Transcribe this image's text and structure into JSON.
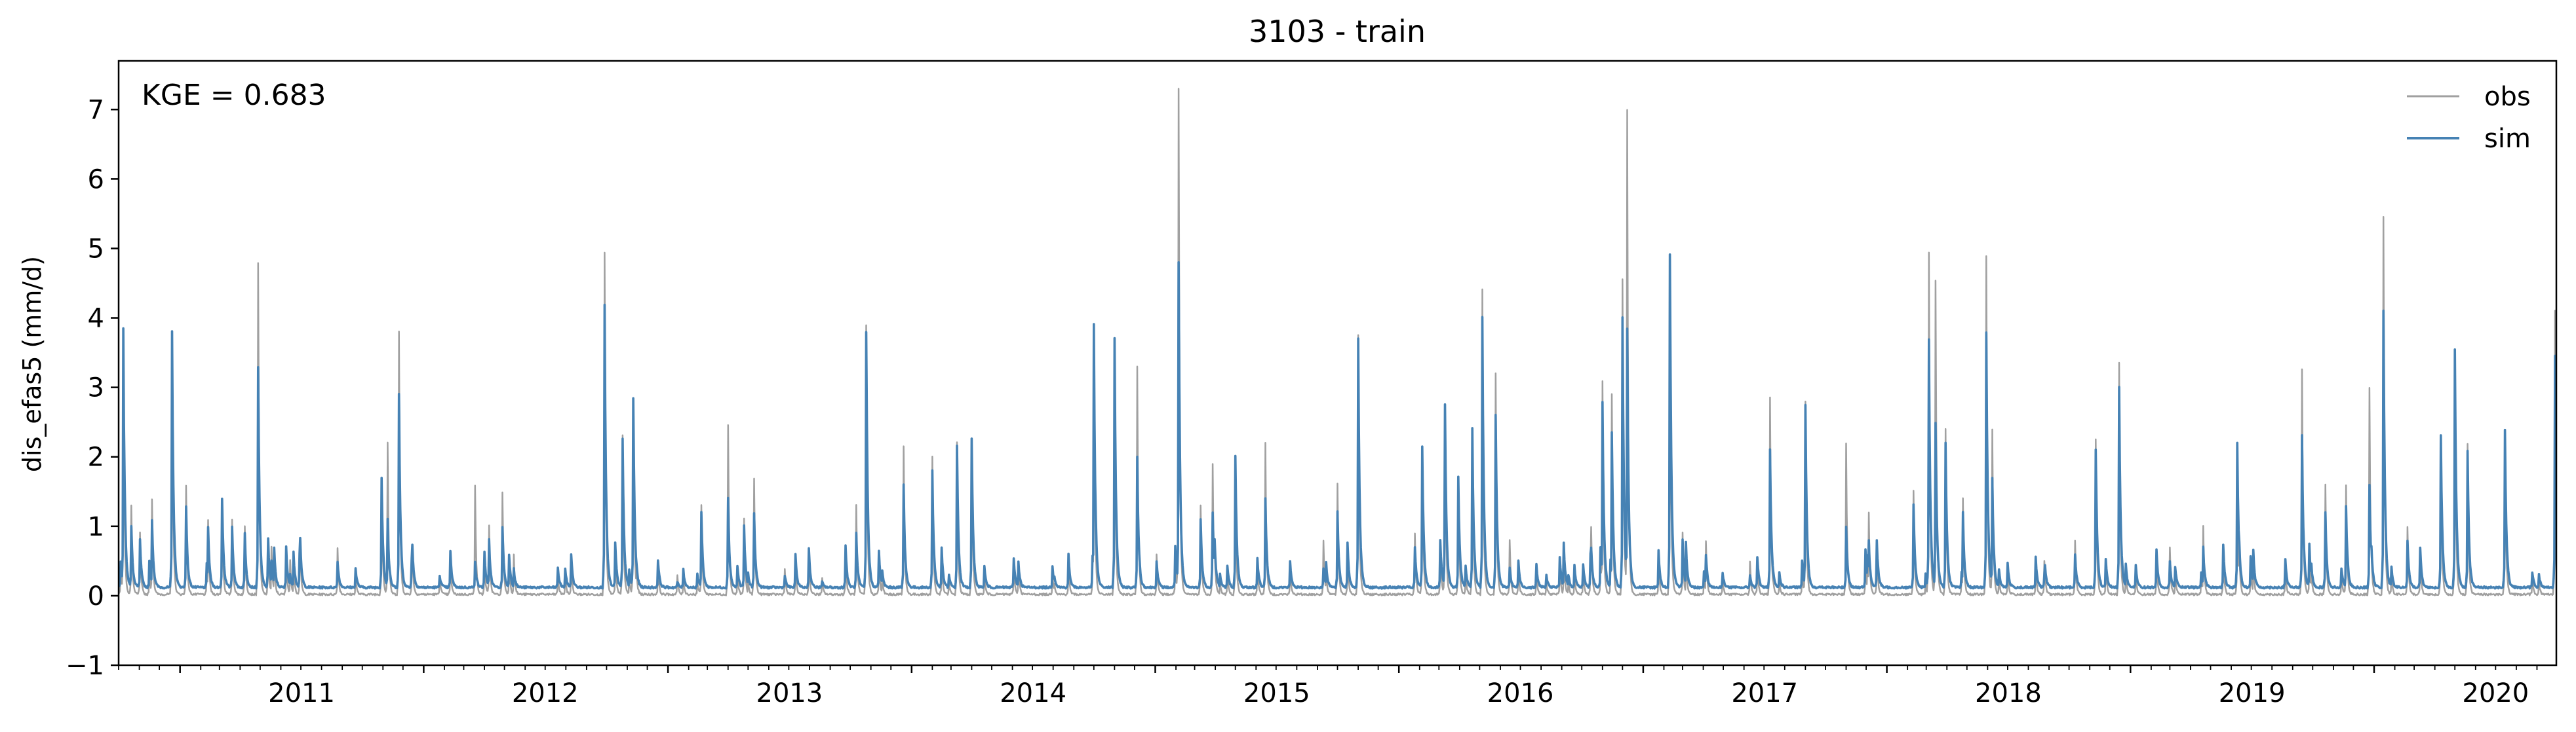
{
  "chart_data": {
    "type": "line",
    "title": "3103 - train",
    "xlabel": "",
    "ylabel": "dis_efas5 (mm/d)",
    "xlim": [
      "2010-10-01",
      "2020-09-30"
    ],
    "ylim": [
      -1,
      7.7
    ],
    "yticks": [
      -1,
      0,
      1,
      2,
      3,
      4,
      5,
      6,
      7
    ],
    "xticks": [
      {
        "label": "2011",
        "date": "2011-01-01"
      },
      {
        "label": "2012",
        "date": "2012-01-01"
      },
      {
        "label": "2013",
        "date": "2013-01-01"
      },
      {
        "label": "2014",
        "date": "2014-01-01"
      },
      {
        "label": "2015",
        "date": "2015-01-01"
      },
      {
        "label": "2016",
        "date": "2016-01-01"
      },
      {
        "label": "2017",
        "date": "2017-01-01"
      },
      {
        "label": "2018",
        "date": "2018-01-01"
      },
      {
        "label": "2019",
        "date": "2019-01-01"
      },
      {
        "label": "2020",
        "date": "2020-01-01"
      }
    ],
    "annotation": "KGE = 0.683",
    "legend": {
      "position": "top-right",
      "entries": [
        "obs",
        "sim"
      ]
    },
    "grid": false,
    "baseline": {
      "obs": 0.02,
      "sim": 0.12
    },
    "series": [
      {
        "name": "obs",
        "color": "#a0a0a0",
        "peaks": [
          [
            "2010-10-08",
            3.6
          ],
          [
            "2010-10-20",
            1.3
          ],
          [
            "2010-11-02",
            0.9
          ],
          [
            "2010-11-20",
            1.4
          ],
          [
            "2010-12-20",
            3.8
          ],
          [
            "2011-01-10",
            1.6
          ],
          [
            "2011-02-12",
            1.1
          ],
          [
            "2011-03-05",
            1.3
          ],
          [
            "2011-03-20",
            1.1
          ],
          [
            "2011-04-08",
            1.0
          ],
          [
            "2011-04-28",
            4.8
          ],
          [
            "2011-05-18",
            0.7
          ],
          [
            "2011-06-15",
            0.5
          ],
          [
            "2011-08-25",
            0.7
          ],
          [
            "2011-10-30",
            1.7
          ],
          [
            "2011-11-08",
            2.2
          ],
          [
            "2011-11-25",
            3.8
          ],
          [
            "2012-01-25",
            0.3
          ],
          [
            "2012-03-18",
            1.6
          ],
          [
            "2012-04-08",
            1.0
          ],
          [
            "2012-04-28",
            1.5
          ],
          [
            "2012-05-15",
            0.6
          ],
          [
            "2012-09-28",
            4.95
          ],
          [
            "2012-10-25",
            2.3
          ],
          [
            "2012-11-10",
            2.85
          ],
          [
            "2013-01-15",
            0.3
          ],
          [
            "2013-02-20",
            1.3
          ],
          [
            "2013-04-01",
            2.45
          ],
          [
            "2013-04-25",
            1.1
          ],
          [
            "2013-05-10",
            1.7
          ],
          [
            "2013-06-25",
            0.4
          ],
          [
            "2013-08-20",
            0.25
          ],
          [
            "2013-10-10",
            1.3
          ],
          [
            "2013-10-25",
            3.9
          ],
          [
            "2013-12-20",
            2.15
          ],
          [
            "2014-02-01",
            2.0
          ],
          [
            "2014-03-10",
            2.2
          ],
          [
            "2014-04-01",
            2.25
          ],
          [
            "2014-06-10",
            0.5
          ],
          [
            "2014-10-01",
            3.85
          ],
          [
            "2014-11-01",
            3.6
          ],
          [
            "2014-12-05",
            3.3
          ],
          [
            "2015-01-03",
            0.6
          ],
          [
            "2015-02-05",
            7.3
          ],
          [
            "2015-03-10",
            1.3
          ],
          [
            "2015-03-28",
            1.9
          ],
          [
            "2015-05-01",
            1.6
          ],
          [
            "2015-06-15",
            2.2
          ],
          [
            "2015-09-10",
            0.8
          ],
          [
            "2015-10-01",
            1.6
          ],
          [
            "2015-11-01",
            3.75
          ],
          [
            "2016-01-25",
            0.9
          ],
          [
            "2016-02-05",
            2.1
          ],
          [
            "2016-03-10",
            2.7
          ],
          [
            "2016-03-30",
            1.6
          ],
          [
            "2016-04-20",
            2.4
          ],
          [
            "2016-05-05",
            4.4
          ],
          [
            "2016-05-25",
            3.2
          ],
          [
            "2016-06-15",
            0.8
          ],
          [
            "2016-10-15",
            1.0
          ],
          [
            "2016-11-01",
            3.1
          ],
          [
            "2016-11-15",
            2.9
          ],
          [
            "2016-12-01",
            4.55
          ],
          [
            "2016-12-08",
            7.0
          ],
          [
            "2017-02-10",
            4.8
          ],
          [
            "2017-03-01",
            0.9
          ],
          [
            "2017-04-05",
            0.8
          ],
          [
            "2017-06-10",
            0.5
          ],
          [
            "2017-07-10",
            2.85
          ],
          [
            "2017-09-01",
            2.8
          ],
          [
            "2017-11-01",
            2.2
          ],
          [
            "2017-12-05",
            1.2
          ],
          [
            "2018-02-10",
            1.5
          ],
          [
            "2018-03-05",
            4.95
          ],
          [
            "2018-03-15",
            4.55
          ],
          [
            "2018-03-30",
            2.4
          ],
          [
            "2018-04-25",
            1.4
          ],
          [
            "2018-05-30",
            4.9
          ],
          [
            "2018-06-08",
            2.4
          ],
          [
            "2018-08-25",
            0.5
          ],
          [
            "2018-10-10",
            0.8
          ],
          [
            "2018-11-10",
            2.25
          ],
          [
            "2018-12-15",
            3.35
          ],
          [
            "2019-03-01",
            0.7
          ],
          [
            "2019-04-20",
            1.0
          ],
          [
            "2019-06-10",
            1.5
          ],
          [
            "2019-09-15",
            3.25
          ],
          [
            "2019-10-20",
            1.6
          ],
          [
            "2019-11-20",
            1.6
          ],
          [
            "2019-12-25",
            3.0
          ],
          [
            "2020-01-15",
            5.45
          ],
          [
            "2020-02-20",
            1.0
          ],
          [
            "2020-04-10",
            2.3
          ],
          [
            "2020-05-01",
            3.55
          ],
          [
            "2020-05-20",
            2.2
          ],
          [
            "2020-07-15",
            2.4
          ],
          [
            "2020-09-28",
            4.1
          ]
        ]
      },
      {
        "name": "sim",
        "color": "#4682b4",
        "peaks": [
          [
            "2010-10-08",
            3.85
          ],
          [
            "2010-10-20",
            1.0
          ],
          [
            "2010-11-02",
            0.8
          ],
          [
            "2010-11-20",
            1.1
          ],
          [
            "2010-12-20",
            3.8
          ],
          [
            "2011-01-10",
            1.3
          ],
          [
            "2011-02-12",
            1.0
          ],
          [
            "2011-03-05",
            1.4
          ],
          [
            "2011-03-20",
            1.0
          ],
          [
            "2011-04-08",
            0.9
          ],
          [
            "2011-04-28",
            3.3
          ],
          [
            "2011-05-18",
            0.5
          ],
          [
            "2011-06-15",
            0.3
          ],
          [
            "2011-08-25",
            0.5
          ],
          [
            "2011-10-30",
            1.7
          ],
          [
            "2011-11-08",
            1.1
          ],
          [
            "2011-11-25",
            2.9
          ],
          [
            "2012-01-25",
            0.3
          ],
          [
            "2012-03-18",
            0.5
          ],
          [
            "2012-04-08",
            0.8
          ],
          [
            "2012-04-28",
            1.0
          ],
          [
            "2012-05-15",
            0.4
          ],
          [
            "2012-09-28",
            4.2
          ],
          [
            "2012-10-25",
            2.25
          ],
          [
            "2012-11-10",
            2.85
          ],
          [
            "2013-01-15",
            0.2
          ],
          [
            "2013-02-20",
            1.2
          ],
          [
            "2013-04-01",
            1.4
          ],
          [
            "2013-04-25",
            1.0
          ],
          [
            "2013-05-10",
            1.2
          ],
          [
            "2013-06-25",
            0.3
          ],
          [
            "2013-08-20",
            0.2
          ],
          [
            "2013-10-10",
            0.9
          ],
          [
            "2013-10-25",
            3.8
          ],
          [
            "2013-12-20",
            1.6
          ],
          [
            "2014-02-01",
            1.8
          ],
          [
            "2014-03-10",
            2.15
          ],
          [
            "2014-04-01",
            2.25
          ],
          [
            "2014-06-10",
            0.5
          ],
          [
            "2014-10-01",
            3.9
          ],
          [
            "2014-11-01",
            3.7
          ],
          [
            "2014-12-05",
            2.0
          ],
          [
            "2015-01-03",
            0.5
          ],
          [
            "2015-02-05",
            4.8
          ],
          [
            "2015-03-10",
            1.1
          ],
          [
            "2015-03-28",
            1.2
          ],
          [
            "2015-05-01",
            2.0
          ],
          [
            "2015-06-15",
            1.4
          ],
          [
            "2015-09-10",
            0.4
          ],
          [
            "2015-10-01",
            1.2
          ],
          [
            "2015-11-01",
            3.7
          ],
          [
            "2016-01-25",
            0.7
          ],
          [
            "2016-02-05",
            2.15
          ],
          [
            "2016-03-10",
            2.75
          ],
          [
            "2016-03-30",
            1.7
          ],
          [
            "2016-04-20",
            2.4
          ],
          [
            "2016-05-05",
            4.0
          ],
          [
            "2016-05-25",
            2.6
          ],
          [
            "2016-06-15",
            0.4
          ],
          [
            "2016-10-15",
            0.7
          ],
          [
            "2016-11-01",
            2.8
          ],
          [
            "2016-11-15",
            2.35
          ],
          [
            "2016-12-01",
            4.0
          ],
          [
            "2016-12-08",
            3.85
          ],
          [
            "2017-02-10",
            4.9
          ],
          [
            "2017-03-01",
            0.8
          ],
          [
            "2017-04-05",
            0.6
          ],
          [
            "2017-06-10",
            0.3
          ],
          [
            "2017-07-10",
            2.1
          ],
          [
            "2017-09-01",
            2.75
          ],
          [
            "2017-11-01",
            1.0
          ],
          [
            "2017-12-05",
            0.8
          ],
          [
            "2018-02-10",
            1.3
          ],
          [
            "2018-03-05",
            3.7
          ],
          [
            "2018-03-15",
            2.5
          ],
          [
            "2018-03-30",
            2.2
          ],
          [
            "2018-04-25",
            1.2
          ],
          [
            "2018-05-30",
            3.8
          ],
          [
            "2018-06-08",
            1.7
          ],
          [
            "2018-08-25",
            0.3
          ],
          [
            "2018-10-10",
            0.6
          ],
          [
            "2018-11-10",
            2.1
          ],
          [
            "2018-12-15",
            3.0
          ],
          [
            "2019-03-01",
            0.5
          ],
          [
            "2019-04-20",
            0.7
          ],
          [
            "2019-06-10",
            2.2
          ],
          [
            "2019-09-15",
            2.3
          ],
          [
            "2019-10-20",
            1.2
          ],
          [
            "2019-11-20",
            1.3
          ],
          [
            "2019-12-25",
            1.6
          ],
          [
            "2020-01-15",
            4.1
          ],
          [
            "2020-02-20",
            0.8
          ],
          [
            "2020-04-10",
            2.3
          ],
          [
            "2020-05-01",
            3.55
          ],
          [
            "2020-05-20",
            2.1
          ],
          [
            "2020-07-15",
            2.4
          ],
          [
            "2020-09-28",
            3.45
          ]
        ]
      }
    ]
  }
}
